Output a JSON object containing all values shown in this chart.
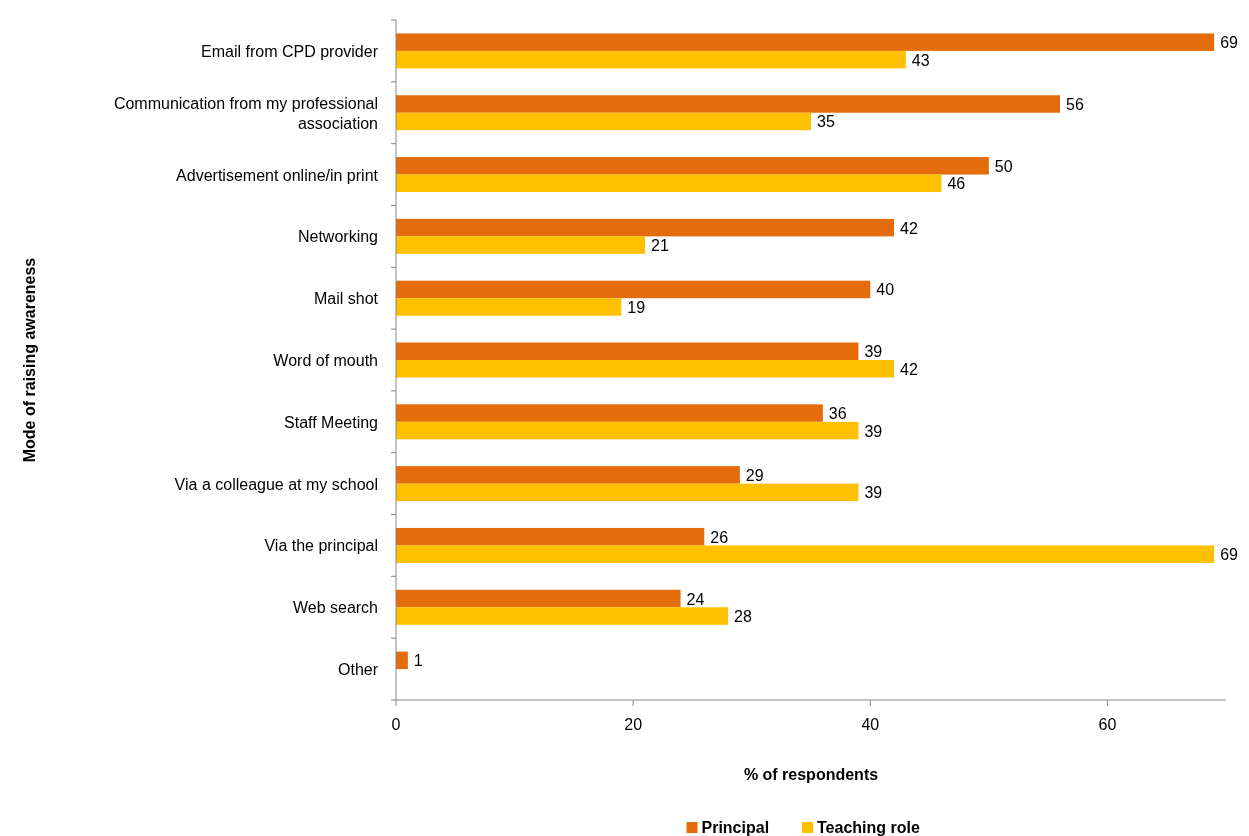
{
  "chart_data": {
    "type": "bar",
    "orientation": "horizontal",
    "xlabel": "% of respondents",
    "ylabel": "Mode of raising awareness",
    "categories": [
      "Email from CPD provider",
      "Communication from my professional association",
      "Advertisement online/in print",
      "Networking",
      "Mail shot",
      "Word of mouth",
      "Staff Meeting",
      "Via a colleague at my school",
      "Via the principal",
      "Web search",
      "Other"
    ],
    "series": [
      {
        "name": "Principal",
        "color": "#e46c0a",
        "values": [
          69,
          56,
          50,
          42,
          40,
          39,
          36,
          29,
          26,
          24,
          1
        ]
      },
      {
        "name": "Teaching role",
        "color": "#ffc000",
        "values": [
          43,
          35,
          46,
          21,
          19,
          42,
          39,
          39,
          69,
          28,
          null
        ]
      }
    ],
    "xlim": [
      0,
      70
    ],
    "xticks": [
      0,
      20,
      40,
      60
    ],
    "data_labels": true,
    "legend": "bottom",
    "grid": false
  }
}
